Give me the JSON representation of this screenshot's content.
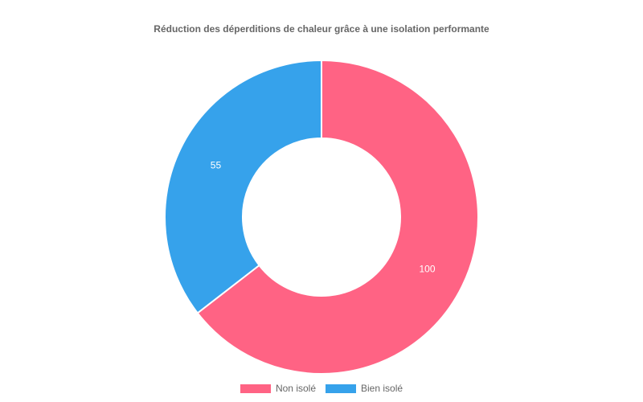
{
  "chart_data": {
    "type": "pie",
    "variant": "doughnut",
    "title": "Réduction des déperditions de chaleur grâce à une isolation performante",
    "categories": [
      "Non isolé",
      "Bien isolé"
    ],
    "values": [
      100,
      55
    ],
    "colors": [
      "#ff6384",
      "#36a2eb"
    ],
    "legend_position": "bottom"
  }
}
